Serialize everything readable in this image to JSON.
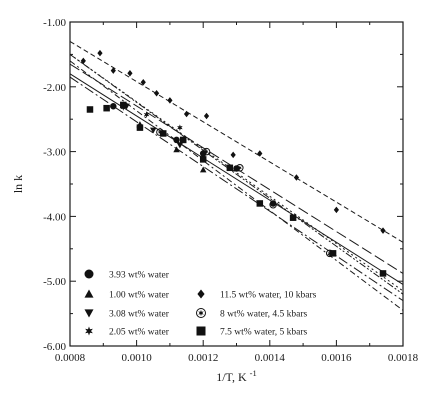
{
  "chart_data": {
    "type": "scatter",
    "title": "",
    "xlabel": "1/T, K",
    "xlabel_exponent": "-1",
    "ylabel": "ln k",
    "xlim": [
      0.0008,
      0.0018
    ],
    "ylim": [
      -6.0,
      -1.0
    ],
    "x_ticks": [
      {
        "value": 0.0008,
        "label": "0.0008"
      },
      {
        "value": 0.001,
        "label": "0.0010"
      },
      {
        "value": 0.0012,
        "label": "0.0012"
      },
      {
        "value": 0.0014,
        "label": "0.0014"
      },
      {
        "value": 0.0016,
        "label": "0.0016"
      },
      {
        "value": 0.0018,
        "label": "0.0018"
      }
    ],
    "y_ticks": [
      {
        "value": -1.0,
        "label": "-1.00"
      },
      {
        "value": -2.0,
        "label": "-2.00"
      },
      {
        "value": -3.0,
        "label": "-3.00"
      },
      {
        "value": -4.0,
        "label": "-4.00"
      },
      {
        "value": -5.0,
        "label": "-5.00"
      },
      {
        "value": -6.0,
        "label": "-6.00"
      }
    ],
    "grid": false,
    "legend_position": "bottom-left",
    "series": [
      {
        "name": "3.93 wt% water",
        "marker": "circle",
        "points": [
          [
            0.00093,
            -2.3
          ],
          [
            0.00101,
            -2.62
          ],
          [
            0.00112,
            -2.82
          ],
          [
            0.0012,
            -3.03
          ],
          [
            0.0013,
            -3.26
          ],
          [
            0.00141,
            -3.8
          ]
        ],
        "fit": {
          "x": [
            0.0008,
            0.0018
          ],
          "y": [
            -1.8,
            -5.05
          ],
          "dash": "solid"
        }
      },
      {
        "name": "1.00 wt% water",
        "marker": "triangle-up",
        "points": [
          [
            0.00101,
            -2.58
          ],
          [
            0.00112,
            -2.97
          ],
          [
            0.0012,
            -3.28
          ]
        ],
        "fit": {
          "x": [
            0.0008,
            0.0018
          ],
          "y": [
            -1.85,
            -5.3
          ],
          "dash": "long-dash-dot"
        }
      },
      {
        "name": "3.08 wt% water",
        "marker": "triangle-down",
        "points": [
          [
            0.00097,
            -2.3
          ],
          [
            0.00105,
            -2.67
          ],
          [
            0.00113,
            -2.9
          ]
        ],
        "fit": {
          "x": [
            0.0008,
            0.0018
          ],
          "y": [
            -1.6,
            -5.45
          ],
          "dash": "dash-dot"
        }
      },
      {
        "name": "2.05 wt% water",
        "marker": "star",
        "points": [
          [
            0.00096,
            -2.32
          ],
          [
            0.00103,
            -2.43
          ],
          [
            0.00113,
            -2.63
          ]
        ],
        "fit": {
          "x": [
            0.0008,
            0.0018
          ],
          "y": [
            -1.65,
            -4.88
          ],
          "dash": "long-dash"
        }
      },
      {
        "name": "11.5 wt% water, 10 kbars",
        "marker": "diamond",
        "points": [
          [
            0.00084,
            -1.6
          ],
          [
            0.00089,
            -1.48
          ],
          [
            0.00093,
            -1.75
          ],
          [
            0.00098,
            -1.79
          ],
          [
            0.00102,
            -1.93
          ],
          [
            0.00106,
            -2.1
          ],
          [
            0.0011,
            -2.21
          ],
          [
            0.00115,
            -2.42
          ],
          [
            0.00121,
            -2.45
          ],
          [
            0.00129,
            -3.05
          ],
          [
            0.00137,
            -3.03
          ],
          [
            0.00148,
            -3.4
          ],
          [
            0.0016,
            -3.9
          ],
          [
            0.00174,
            -4.22
          ]
        ],
        "fit": {
          "x": [
            0.0008,
            0.0018
          ],
          "y": [
            -1.3,
            -4.4
          ],
          "dash": "short-dash"
        }
      },
      {
        "name": "8 wt% water, 4.5 kbars",
        "marker": "circled-star",
        "points": [
          [
            0.00107,
            -2.7
          ],
          [
            0.00121,
            -3.0
          ],
          [
            0.00131,
            -3.25
          ],
          [
            0.00141,
            -3.82
          ],
          [
            0.00158,
            -4.57
          ]
        ],
        "fit": {
          "x": [
            0.0008,
            0.0018
          ],
          "y": [
            -1.5,
            -5.2
          ],
          "dash": "dash-dot-dot"
        }
      },
      {
        "name": "7.5 wt% water, 5 kbars",
        "marker": "square",
        "points": [
          [
            0.00086,
            -2.35
          ],
          [
            0.00091,
            -2.33
          ],
          [
            0.00096,
            -2.28
          ],
          [
            0.00101,
            -2.63
          ],
          [
            0.00108,
            -2.72
          ],
          [
            0.00114,
            -2.82
          ],
          [
            0.0012,
            -3.12
          ],
          [
            0.00128,
            -3.25
          ],
          [
            0.00137,
            -3.8
          ],
          [
            0.00147,
            -4.02
          ],
          [
            0.00159,
            -4.57
          ],
          [
            0.00174,
            -4.88
          ]
        ],
        "fit": {
          "x": [
            0.0008,
            0.0018
          ],
          "y": [
            -1.5,
            -5.15
          ],
          "dash": "dotted"
        }
      }
    ]
  }
}
